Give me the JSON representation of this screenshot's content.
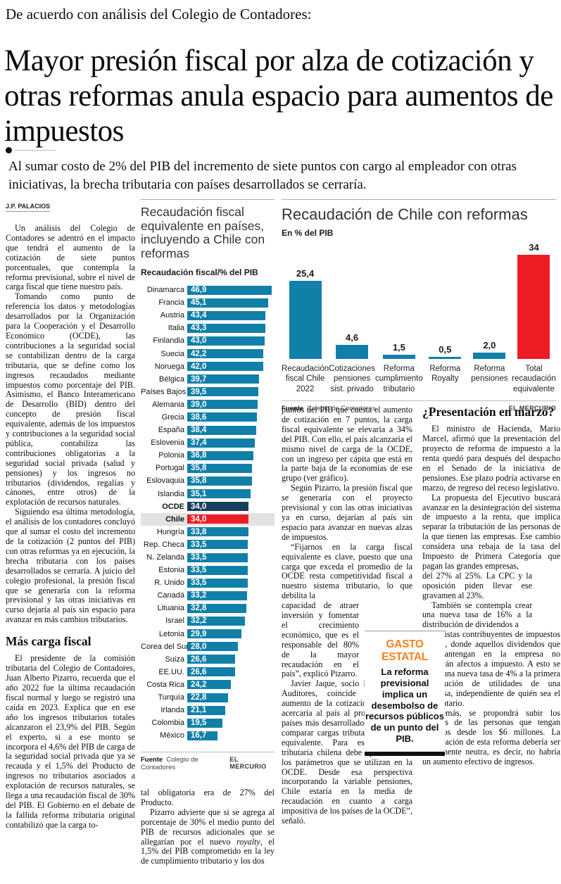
{
  "kicker": "De acuerdo con análisis del Colegio de Contadores:",
  "headline": "Mayor presión fiscal por alza de cotización y otras reformas anula espacio para aumentos de impuestos",
  "deck": "Al sumar costo de 2% del PIB del incremento de siete puntos con cargo al empleador con otras iniciativas, la brecha tributaria con países desarrollados se cerraría.",
  "byline": "J.P. PALACIOS",
  "article": {
    "col1": [
      "Un análisis del Colegio de Contadores se adentró en el impacto que tendrá el aumento de la cotización de siete puntos porcentuales, que contempla la reforma previsional, sobre el nivel de carga fiscal que tiene nuestro país.",
      "Tomando como punto de referencia los datos y metodologías desarrollados por la Organización para la Cooperación y el Desarrollo Económico (OCDE), las contribuciones a la seguridad social se contabilizan dentro de la carga tributaria, que se define como los ingresos recaudados mediante impuestos como porcentaje del PIB. Asimismo, el Banco Interamericano de Desarrollo (BID) dentro del concepto de presión fiscal equivalente, además de los impuestos y contribuciones a la seguridad social pública, contabiliza las contribuciones obligatorias a la seguridad social privada (salud y pensiones) y los ingresos no tributarios (dividendos, regalías y cánones, entre otros) de la explotación de recursos naturales.",
      "Siguiendo esa última metodología, el análisis de los contadores concluyó que al sumar el costo del incremento de la cotización (2 puntos del PIB) con otras reformas ya en ejecución, la brecha tributaria con los países desarrollados se cerraría. A juicio del colegio profesional, la presión fiscal que se generaría con la reforma previsional y las otras iniciativas en curso dejaría al país sin espacio para avanzar en más cambios tributarios."
    ],
    "col1_subhead": "Más carga fiscal",
    "col1b": [
      "El presidente de la comisión tributaria del Colegio de Contadores, Juan Alberto Pizarro, recuerda que el año 2022 fue la última recaudación fiscal normal y luego se registró una caída en 2023. Explica que en ese año los ingresos tributarios totales alcanzaron el 23,9% del PIB. Según el experto, si a ese monto se incorpora el 4,6% del PIB de carga de la seguridad social privada que ya se recauda y el 1,5% del Producto de ingresos no tributarios asociados a explotación de recursos naturales, se llega a una recaudación fiscal de 30% del PIB. El Gobierno en el debate de la fallida reforma tributaria original contabilizó que la carga to-"
    ],
    "col2_tail_p1": "tal obligatoria era de 27% del Producto.",
    "col2_tail_p2_pre": "Pizarro advierte que si se agrega al porcentaje de 30% el medio punto del PIB de recursos adicionales que se allegarían por el nuevo ",
    "col2_tail_p2_italic": "royalty",
    "col2_tail_p2_post": ", el 1,5% del PIB comprometido en la ley de cumplimiento tributario y los dos",
    "col3": [
      "puntos del PIB que cuesta el aumento de cotización en 7 puntos, la carga fiscal equivalente se elevaría a 34% del PIB. Con ello, el país alcanzaría el mismo nivel de carga de la OCDE, con un ingreso per cápita que está en la parte baja de la economías de ese grupo (ver gráfico).",
      "Según Pizarro, la presión fiscal que se generaría con el proyecto previsional y con las otras iniciativas ya en curso, dejarían al país sin espacio para avanzar en nuevas alzas de impuestos.",
      "“Fijarnos en la carga fiscal equivalente es clave, puesto que una carga que exceda el promedio de la OCDE resta competitividad fiscal a nuestro sistema tributario, lo que debilita la"
    ],
    "col3_narrow": "capacidad de atraer inversión y fomentar el crecimiento económico, que es el responsable del 80% de la mayor recaudación en el país”, explicó Pizarro.",
    "col3_tail": "Javier Jaque, socio líder de CCL Auditores, coincide en que el aumento de la cotización previsional acercaría al país al promedio de los países más desarrollados. “La idea es comparar cargas tributarias en forma equivalente. Para eso la carga tributaria chilena debe ajustarse con los parámetros que se utilizan en la OCDE. Desde esa perspectiva incorporando la variable pensiones, Chile estaría en la media de recaudación en cuanto a carga impositiva de los países de la OCDE”, señaló.",
    "col4_subhead": "¿Presentación en marzo?",
    "col4": [
      "El ministro de Hacienda, Mario Marcel, afirmó que la presentación del proyecto de reforma de impuesto a la renta quedó para después del despacho en el Senado de la iniciativa de pensiones. Ese plazo podría activarse en marzo, de regreso del receso legislativo.",
      "La propuesta del Ejecutivo buscará avanzar en la desintegración del sistema de impuesto a la renta, que implica separar la tributación de las personas de la que tienen las empresas. Ese cambio considera una rebaja de la tasa del Impuesto de Primera Categoría que pagan las grandes empresas,"
    ],
    "col4_narrow": [
      "del 27% al 25%. La CPC y la oposición piden llevar ese gravamen al 23%.",
      "También se contempla crear una nueva tasa de 16% a la distribución de dividendos a"
    ],
    "col4_tail": [
      "accionistas contribuyentes de impuestos finales, donde aquellos dividendos que se mantengan en la empresa no quedarán afectos a impuesto. A esto se suma una nueva tasa de 4% a la primera distribución de utilidades de una empresa, independiente de quién sea el destinatario.",
      "Además, se propondrá subir los tributos de las personas que tengan ingresos desde los $6 millones. La recaudación de esta reforma debería ser fiscalmente neutra, es decir, no habría un aumento efectivo de ingresos."
    ]
  },
  "gasto_box": {
    "kicker": "GASTO ESTATAL",
    "text": "La reforma previsional implica un desembolso de recursos públicos de un punto del PIB."
  },
  "chart_data": [
    {
      "type": "bar",
      "orientation": "horizontal",
      "title": "Recaudación fiscal equivalente en países, incluyendo a Chile con reformas",
      "subtitle": "Recaudación fiscal/% del PIB",
      "categories": [
        "Dinamarca",
        "Francia",
        "Austria",
        "Italia",
        "Finlandia",
        "Suecia",
        "Noruega",
        "Bélgica",
        "Países Bajos",
        "Alemania",
        "Grecia",
        "España",
        "Eslovenia",
        "Polonia",
        "Portugal",
        "Eslovaquia",
        "Islandia",
        "OCDE",
        "Chile",
        "Hungría",
        "Rep. Checa",
        "N. Zelanda",
        "Estonia",
        "R. Unido",
        "Canadá",
        "Lituania",
        "Israel",
        "Letonia",
        "Corea del Sur",
        "Suiza",
        "EE.UU.",
        "Costa Rica",
        "Turquía",
        "Irlanda",
        "Colombia",
        "México"
      ],
      "values": [
        46.9,
        45.1,
        43.4,
        43.3,
        43.0,
        42.2,
        42.0,
        39.7,
        39.5,
        39.0,
        38.6,
        38.4,
        37.4,
        36.8,
        35.8,
        35.8,
        35.1,
        34.0,
        34.0,
        33.8,
        33.5,
        33.5,
        33.5,
        33.5,
        33.2,
        32.8,
        32.2,
        29.9,
        28.0,
        26.6,
        26.6,
        24.2,
        22.8,
        21.1,
        19.5,
        16.7
      ],
      "value_labels": [
        "46,9",
        "45,1",
        "43,4",
        "43,3",
        "43,0",
        "42,2",
        "42,0",
        "39,7",
        "39,5",
        "39,0",
        "38,6",
        "38,4",
        "37,4",
        "36,8",
        "35,8",
        "35,8",
        "35,1",
        "34,0",
        "34,0",
        "33,8",
        "33,5",
        "33,5",
        "33,5",
        "33,5",
        "33,2",
        "32,8",
        "32,2",
        "29,9",
        "28,0",
        "26,6",
        "26,6",
        "24,2",
        "22,8",
        "21,1",
        "19,5",
        "16,7"
      ],
      "highlight_ocde_index": 17,
      "highlight_chile_index": 18,
      "xlim": [
        0,
        47
      ],
      "bar_color": "#1180a9",
      "ocde_color": "#16405c",
      "chile_color": "#ee1c25",
      "chile_band_color": "#e2e2e2",
      "source_label": "Fuente",
      "source": "Colegio de Contadores",
      "credit": "EL MERCURIO"
    },
    {
      "type": "bar",
      "orientation": "vertical",
      "title": "Recaudación de Chile con reformas",
      "subtitle": "En % del PIB",
      "categories": [
        "Recaudación fiscal Chile 2022",
        "Cotizaciones pensiones sist. privado",
        "Reforma cumplimiento tributario",
        "Reforma Royalty",
        "Reforma pensiones",
        "Total recaudación equivalente"
      ],
      "values": [
        25.4,
        4.6,
        1.5,
        0.5,
        2.0,
        34
      ],
      "value_labels": [
        "25,4",
        "4,6",
        "1,5",
        "0,5",
        "2,0",
        "34"
      ],
      "total_index": 5,
      "ylim": [
        0,
        34
      ],
      "bar_color": "#1180a9",
      "total_color": "#ee1c25",
      "source_label": "Fuente",
      "source": "Colegio de Contadores",
      "credit": "EL MERCURIO"
    }
  ]
}
